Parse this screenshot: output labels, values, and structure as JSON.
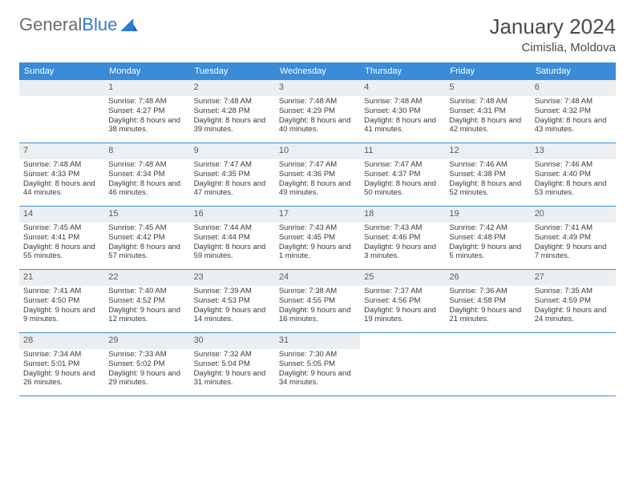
{
  "colors": {
    "header_bg": "#3a8bd8",
    "header_text": "#ffffff",
    "daynum_bg": "#eceff1",
    "week_border": "#3a8bd8",
    "logo_gray": "#6b6b6b",
    "logo_blue": "#2e7cd6",
    "title_color": "#4a4a4a",
    "body_text": "#3a3a3a",
    "page_bg": "#ffffff"
  },
  "logo": {
    "word1": "General",
    "word2": "Blue"
  },
  "title": "January 2024",
  "location": "Cimislia, Moldova",
  "weekdays": [
    "Sunday",
    "Monday",
    "Tuesday",
    "Wednesday",
    "Thursday",
    "Friday",
    "Saturday"
  ],
  "start_offset": 1,
  "days": [
    {
      "n": "1",
      "sunrise": "7:48 AM",
      "sunset": "4:27 PM",
      "daylight": "8 hours and 38 minutes."
    },
    {
      "n": "2",
      "sunrise": "7:48 AM",
      "sunset": "4:28 PM",
      "daylight": "8 hours and 39 minutes."
    },
    {
      "n": "3",
      "sunrise": "7:48 AM",
      "sunset": "4:29 PM",
      "daylight": "8 hours and 40 minutes."
    },
    {
      "n": "4",
      "sunrise": "7:48 AM",
      "sunset": "4:30 PM",
      "daylight": "8 hours and 41 minutes."
    },
    {
      "n": "5",
      "sunrise": "7:48 AM",
      "sunset": "4:31 PM",
      "daylight": "8 hours and 42 minutes."
    },
    {
      "n": "6",
      "sunrise": "7:48 AM",
      "sunset": "4:32 PM",
      "daylight": "8 hours and 43 minutes."
    },
    {
      "n": "7",
      "sunrise": "7:48 AM",
      "sunset": "4:33 PM",
      "daylight": "8 hours and 44 minutes."
    },
    {
      "n": "8",
      "sunrise": "7:48 AM",
      "sunset": "4:34 PM",
      "daylight": "8 hours and 46 minutes."
    },
    {
      "n": "9",
      "sunrise": "7:47 AM",
      "sunset": "4:35 PM",
      "daylight": "8 hours and 47 minutes."
    },
    {
      "n": "10",
      "sunrise": "7:47 AM",
      "sunset": "4:36 PM",
      "daylight": "8 hours and 49 minutes."
    },
    {
      "n": "11",
      "sunrise": "7:47 AM",
      "sunset": "4:37 PM",
      "daylight": "8 hours and 50 minutes."
    },
    {
      "n": "12",
      "sunrise": "7:46 AM",
      "sunset": "4:38 PM",
      "daylight": "8 hours and 52 minutes."
    },
    {
      "n": "13",
      "sunrise": "7:46 AM",
      "sunset": "4:40 PM",
      "daylight": "8 hours and 53 minutes."
    },
    {
      "n": "14",
      "sunrise": "7:45 AM",
      "sunset": "4:41 PM",
      "daylight": "8 hours and 55 minutes."
    },
    {
      "n": "15",
      "sunrise": "7:45 AM",
      "sunset": "4:42 PM",
      "daylight": "8 hours and 57 minutes."
    },
    {
      "n": "16",
      "sunrise": "7:44 AM",
      "sunset": "4:44 PM",
      "daylight": "8 hours and 59 minutes."
    },
    {
      "n": "17",
      "sunrise": "7:43 AM",
      "sunset": "4:45 PM",
      "daylight": "9 hours and 1 minute."
    },
    {
      "n": "18",
      "sunrise": "7:43 AM",
      "sunset": "4:46 PM",
      "daylight": "9 hours and 3 minutes."
    },
    {
      "n": "19",
      "sunrise": "7:42 AM",
      "sunset": "4:48 PM",
      "daylight": "9 hours and 5 minutes."
    },
    {
      "n": "20",
      "sunrise": "7:41 AM",
      "sunset": "4:49 PM",
      "daylight": "9 hours and 7 minutes."
    },
    {
      "n": "21",
      "sunrise": "7:41 AM",
      "sunset": "4:50 PM",
      "daylight": "9 hours and 9 minutes."
    },
    {
      "n": "22",
      "sunrise": "7:40 AM",
      "sunset": "4:52 PM",
      "daylight": "9 hours and 12 minutes."
    },
    {
      "n": "23",
      "sunrise": "7:39 AM",
      "sunset": "4:53 PM",
      "daylight": "9 hours and 14 minutes."
    },
    {
      "n": "24",
      "sunrise": "7:38 AM",
      "sunset": "4:55 PM",
      "daylight": "9 hours and 16 minutes."
    },
    {
      "n": "25",
      "sunrise": "7:37 AM",
      "sunset": "4:56 PM",
      "daylight": "9 hours and 19 minutes."
    },
    {
      "n": "26",
      "sunrise": "7:36 AM",
      "sunset": "4:58 PM",
      "daylight": "9 hours and 21 minutes."
    },
    {
      "n": "27",
      "sunrise": "7:35 AM",
      "sunset": "4:59 PM",
      "daylight": "9 hours and 24 minutes."
    },
    {
      "n": "28",
      "sunrise": "7:34 AM",
      "sunset": "5:01 PM",
      "daylight": "9 hours and 26 minutes."
    },
    {
      "n": "29",
      "sunrise": "7:33 AM",
      "sunset": "5:02 PM",
      "daylight": "9 hours and 29 minutes."
    },
    {
      "n": "30",
      "sunrise": "7:32 AM",
      "sunset": "5:04 PM",
      "daylight": "9 hours and 31 minutes."
    },
    {
      "n": "31",
      "sunrise": "7:30 AM",
      "sunset": "5:05 PM",
      "daylight": "9 hours and 34 minutes."
    }
  ],
  "labels": {
    "sunrise": "Sunrise:",
    "sunset": "Sunset:",
    "daylight": "Daylight:"
  }
}
